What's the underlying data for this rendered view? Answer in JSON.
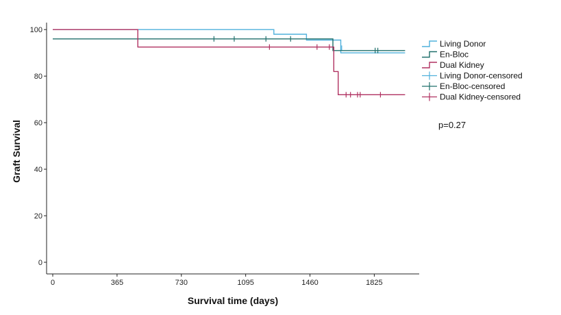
{
  "chart_data": {
    "type": "line",
    "title": "",
    "xlabel": "Survival time (days)",
    "ylabel": "Graft Survival",
    "xlim": [
      -35,
      2080
    ],
    "ylim": [
      -5,
      103
    ],
    "x_ticks": [
      0,
      365,
      730,
      1095,
      1460,
      1825
    ],
    "y_ticks": [
      0,
      20,
      40,
      60,
      80,
      100
    ],
    "grid": false,
    "legend_position": "right",
    "annotation": "p=0.27",
    "series": [
      {
        "name": "Living Donor",
        "color": "#4fb0dc",
        "steps": [
          [
            0,
            100
          ],
          [
            1255,
            100
          ],
          [
            1255,
            98
          ],
          [
            1440,
            98
          ],
          [
            1440,
            95.5
          ],
          [
            1635,
            95.5
          ],
          [
            1635,
            90
          ],
          [
            2000,
            90
          ]
        ],
        "censored": [
          [
            1640,
            92
          ]
        ]
      },
      {
        "name": "En-Bloc",
        "color": "#1f6f6a",
        "steps": [
          [
            0,
            96
          ],
          [
            1590,
            96
          ],
          [
            1590,
            91
          ],
          [
            2000,
            91
          ]
        ],
        "censored": [
          [
            915,
            96
          ],
          [
            1030,
            96
          ],
          [
            1210,
            96
          ],
          [
            1350,
            96
          ],
          [
            1830,
            91
          ],
          [
            1845,
            91
          ]
        ]
      },
      {
        "name": "Dual Kidney",
        "color": "#b03060",
        "steps": [
          [
            0,
            100
          ],
          [
            483,
            100
          ],
          [
            483,
            92.5
          ],
          [
            1595,
            92.5
          ],
          [
            1595,
            82
          ],
          [
            1620,
            82
          ],
          [
            1620,
            72
          ],
          [
            2000,
            72
          ]
        ],
        "censored": [
          [
            1230,
            92.5
          ],
          [
            1500,
            92.5
          ],
          [
            1570,
            92.5
          ],
          [
            1665,
            72
          ],
          [
            1690,
            72
          ],
          [
            1730,
            72
          ],
          [
            1745,
            72
          ],
          [
            1860,
            72
          ]
        ]
      }
    ],
    "legend": [
      {
        "label": "Living Donor",
        "kind": "line",
        "color": "#4fb0dc"
      },
      {
        "label": "En-Bloc",
        "kind": "line",
        "color": "#1f6f6a"
      },
      {
        "label": "Dual Kidney",
        "kind": "line",
        "color": "#b03060"
      },
      {
        "label": "Living Donor-censored",
        "kind": "censor",
        "color": "#4fb0dc"
      },
      {
        "label": "En-Bloc-censored",
        "kind": "censor",
        "color": "#1f6f6a"
      },
      {
        "label": "Dual Kidney-censored",
        "kind": "censor",
        "color": "#b03060"
      }
    ]
  }
}
